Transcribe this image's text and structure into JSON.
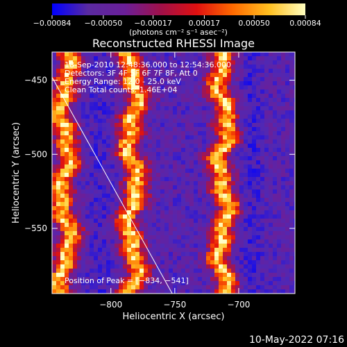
{
  "chart_data": {
    "type": "heatmap",
    "title": "Reconstructed RHESSI Image",
    "xlabel": "Heliocentric X (arcsec)",
    "ylabel": "Heliocentric Y (arcsec)",
    "xlim": [
      -846,
      -656
    ],
    "ylim": [
      -594,
      -431
    ],
    "x_ticks": [
      {
        "value": -800,
        "label": "−800"
      },
      {
        "value": -750,
        "label": "−750"
      },
      {
        "value": -700,
        "label": "−700"
      }
    ],
    "y_ticks": [
      {
        "value": -450,
        "label": "−450"
      },
      {
        "value": -500,
        "label": "−500"
      },
      {
        "value": -550,
        "label": "−550"
      }
    ],
    "colorbar": {
      "range": [
        -0.00084,
        0.00084
      ],
      "ticks": [
        {
          "value": -0.00084,
          "label": "−0.00084"
        },
        {
          "value": -0.0005,
          "label": "−0.00050"
        },
        {
          "value": -0.00017,
          "label": "−0.00017"
        },
        {
          "value": 0.00017,
          "label": "0.00017"
        },
        {
          "value": 0.0005,
          "label": "0.00050"
        },
        {
          "value": 0.00084,
          "label": "0.00084"
        }
      ],
      "units": "(photons cm⁻² s⁻¹ asec⁻²)",
      "colors": [
        "#0000ff",
        "#5a2aa0",
        "#6a1f9a",
        "#a0104a",
        "#e01010",
        "#ff6a00",
        "#ffc020",
        "#ffffc0"
      ]
    },
    "info_lines": [
      "18-Sep-2010 12:48:36.000 to 12:54:36.000",
      "Detectors: 3F 4F 5F 6F 7F 8F, Att 0",
      "Energy Range: 12.0 - 25.0 keV",
      "Clean    Total counts: 1.46E+04"
    ],
    "peak_label": "Position of Peak = [−834, −541]",
    "peak": {
      "x": -834,
      "y": -541
    },
    "limb_line": {
      "x1": -846,
      "y1": -448,
      "x2": -752,
      "y2": -594
    },
    "bright_ridges": [
      {
        "x": -836,
        "y_from": -594,
        "y_to": -431
      },
      {
        "x": -783,
        "y_from": -594,
        "y_to": -431
      },
      {
        "x": -712,
        "y_from": -594,
        "y_to": -431
      }
    ]
  },
  "footer": {
    "timestamp": "10-May-2022 07:16"
  }
}
